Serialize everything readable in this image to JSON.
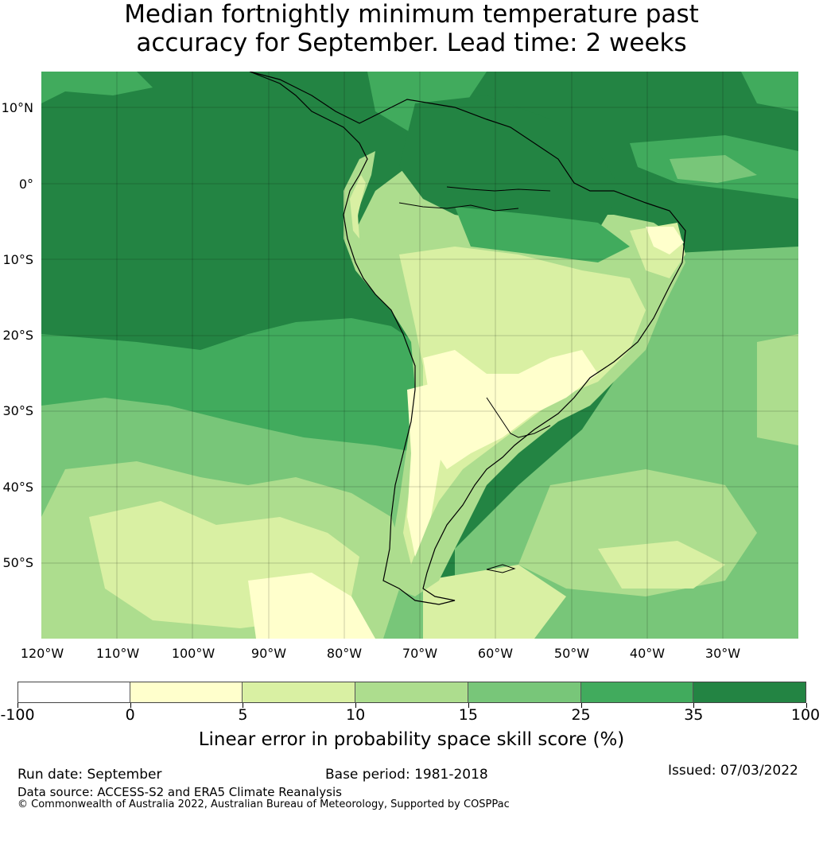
{
  "title_line1": "Median fortnightly minimum temperature past",
  "title_line2": "accuracy for September. Lead time: 2 weeks",
  "map": {
    "lat_labels": [
      "10°N",
      "0°",
      "10°S",
      "20°S",
      "30°S",
      "40°S",
      "50°S"
    ],
    "lon_labels": [
      "120°W",
      "110°W",
      "100°W",
      "90°W",
      "80°W",
      "70°W",
      "60°W",
      "50°W",
      "40°W",
      "30°W"
    ],
    "colors": {
      "ocean_dark": "#238443",
      "c25_35": "#41ab5d",
      "c15_25": "#78c679",
      "c10_15": "#addd8e",
      "c5_10": "#d9f0a3",
      "c0_5": "#ffffcc"
    }
  },
  "colorbar": {
    "ticks": [
      "-100",
      "0",
      "5",
      "10",
      "15",
      "25",
      "35",
      "100"
    ],
    "colors": [
      "#ffffff",
      "#ffffcc",
      "#d9f0a3",
      "#addd8e",
      "#78c679",
      "#41ab5d",
      "#238443"
    ],
    "label": "Linear error in probability space skill score (%)"
  },
  "footer": {
    "run_date": "Run date: September",
    "base_period": "Base period: 1981-2018",
    "issued": "Issued: 07/03/2022",
    "data_source": "Data source: ACCESS-S2 and ERA5 Climate Reanalysis",
    "copyright": "© Commonwealth of Australia 2022, Australian Bureau of Meteorology, Supported by COSPPac"
  }
}
